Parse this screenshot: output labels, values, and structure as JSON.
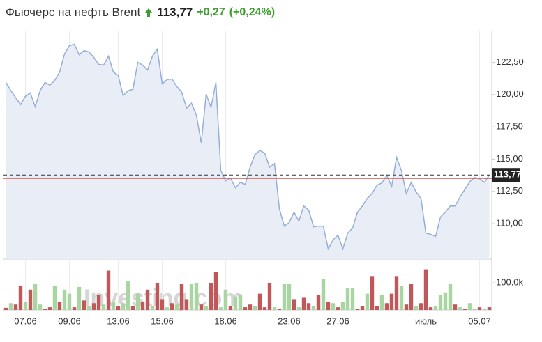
{
  "chart_data": {
    "type": "line",
    "title": "Фьючерс на нефть Brent",
    "current_price": 113.77,
    "current_price_label": "113,77",
    "change": "+0,27",
    "change_pct": "(+0,24%)",
    "watermark": "Investing.com",
    "color": "#94aed6",
    "area_color": "#e9edf6",
    "reference_line": 113.5,
    "reference_color": "#d9534f",
    "categories": [
      null,
      null,
      null,
      null,
      "07.06",
      null,
      null,
      null,
      null,
      null,
      null,
      null,
      null,
      "09.06",
      null,
      null,
      null,
      null,
      null,
      null,
      null,
      null,
      null,
      "13.06",
      null,
      null,
      null,
      null,
      null,
      null,
      null,
      null,
      "15.06",
      null,
      null,
      null,
      null,
      null,
      null,
      null,
      null,
      null,
      null,
      null,
      null,
      "18.06",
      null,
      null,
      null,
      null,
      null,
      null,
      null,
      null,
      null,
      null,
      null,
      null,
      "23.06",
      null,
      null,
      null,
      null,
      null,
      null,
      null,
      null,
      null,
      "27.06",
      null,
      null,
      null,
      null,
      null,
      null,
      null,
      null,
      null,
      null,
      null,
      null,
      null,
      null,
      null,
      null,
      null,
      "июль",
      null,
      null,
      null,
      null,
      null,
      null,
      null,
      null,
      null,
      null,
      "05.07",
      null,
      null
    ],
    "values": [
      120.94,
      120.3,
      119.76,
      119.22,
      119.87,
      120.13,
      119.06,
      120.3,
      120.94,
      120.73,
      121.1,
      121.75,
      123.15,
      123.79,
      123.9,
      123.09,
      123.41,
      123.31,
      122.88,
      122.34,
      122.28,
      122.98,
      121.75,
      121.48,
      119.92,
      120.3,
      120.4,
      122.5,
      122.28,
      121.91,
      122.98,
      123.52,
      120.83,
      121.16,
      121.21,
      120.62,
      120.19,
      118.95,
      119.33,
      118.41,
      116.26,
      120.03,
      119.01,
      120.94,
      114.11,
      113.31,
      113.52,
      112.77,
      113.2,
      113.04,
      114.38,
      115.35,
      115.67,
      115.46,
      114.38,
      114.65,
      111.16,
      109.81,
      110.08,
      110.89,
      110.19,
      111.37,
      111.05,
      109.76,
      109.81,
      109.81,
      108.04,
      108.74,
      109.11,
      108.04,
      109.27,
      109.65,
      110.89,
      111.37,
      111.96,
      112.34,
      112.98,
      113.15,
      113.74,
      112.88,
      115.13,
      114.11,
      112.34,
      113.2,
      112.45,
      111.96,
      109.27,
      109.17,
      109.01,
      110.51,
      110.89,
      111.37,
      111.37,
      112.07,
      112.66,
      113.25,
      113.58,
      113.47,
      113.2,
      113.77
    ],
    "ylim": [
      107.25,
      124.9
    ],
    "yticks": [
      {
        "value": 110,
        "label": "110,00"
      },
      {
        "value": 112.5,
        "label": "112,50"
      },
      {
        "value": 115,
        "label": "115,00"
      },
      {
        "value": 117.5,
        "label": "117,50"
      },
      {
        "value": 120,
        "label": "120,00"
      },
      {
        "value": 122.5,
        "label": "122,50"
      }
    ],
    "grid": true,
    "volume": {
      "values": [
        8000,
        25000,
        20000,
        90000,
        30000,
        75000,
        95000,
        20000,
        5000,
        10000,
        90000,
        30000,
        75000,
        60000,
        10000,
        85000,
        35000,
        15000,
        25000,
        55000,
        20000,
        145000,
        30000,
        15000,
        25000,
        105000,
        15000,
        60000,
        30000,
        75000,
        15000,
        100000,
        40000,
        10000,
        25000,
        20000,
        95000,
        40000,
        95000,
        100000,
        20000,
        15000,
        100000,
        140000,
        10000,
        75000,
        15000,
        50000,
        55000,
        10000,
        20000,
        15000,
        60000,
        10000,
        100000,
        10000,
        5000,
        95000,
        95000,
        40000,
        10000,
        45000,
        25000,
        15000,
        55000,
        115000,
        30000,
        25000,
        10000,
        30000,
        80000,
        80000,
        5000,
        15000,
        60000,
        125000,
        15000,
        55000,
        25000,
        60000,
        125000,
        90000,
        20000,
        95000,
        15000,
        25000,
        150000,
        10000,
        15000,
        55000,
        65000,
        95000,
        20000,
        10000,
        5000,
        25000,
        5000,
        10000,
        5000,
        10000
      ],
      "colors": [
        "#c0585a",
        "#a9d5a2",
        "#c0585a",
        "#c0585a",
        "#a9d5a2",
        "#c0585a",
        "#a9d5a2",
        "#a9d5a2",
        "#c0585a",
        "#c0585a",
        "#a9d5a2",
        "#c0585a",
        "#a9d5a2",
        "#a9d5a2",
        "#c0585a",
        "#a9d5a2",
        "#c0585a",
        "#a9d5a2",
        "#c0585a",
        "#c0585a",
        "#a9d5a2",
        "#c0585a",
        "#a9d5a2",
        "#c0585a",
        "#a9d5a2",
        "#a9d5a2",
        "#c0585a",
        "#a9d5a2",
        "#c0585a",
        "#c0585a",
        "#a9d5a2",
        "#c0585a",
        "#c0585a",
        "#a9d5a2",
        "#c0585a",
        "#a9d5a2",
        "#c0585a",
        "#c0585a",
        "#a9d5a2",
        "#a9d5a2",
        "#c0585a",
        "#a9d5a2",
        "#c0585a",
        "#c0585a",
        "#a9d5a2",
        "#a9d5a2",
        "#c0585a",
        "#a9d5a2",
        "#a9d5a2",
        "#c0585a",
        "#c0585a",
        "#a9d5a2",
        "#c0585a",
        "#c0585a",
        "#c0585a",
        "#a9d5a2",
        "#c0585a",
        "#a9d5a2",
        "#a9d5a2",
        "#c0585a",
        "#a9d5a2",
        "#c0585a",
        "#c0585a",
        "#a9d5a2",
        "#c0585a",
        "#a9d5a2",
        "#c0585a",
        "#a9d5a2",
        "#c0585a",
        "#a9d5a2",
        "#a9d5a2",
        "#a9d5a2",
        "#c0585a",
        "#c0585a",
        "#a9d5a2",
        "#c0585a",
        "#c0585a",
        "#a9d5a2",
        "#c0585a",
        "#c0585a",
        "#c0585a",
        "#a9d5a2",
        "#c0585a",
        "#c0585a",
        "#a9d5a2",
        "#c0585a",
        "#c0585a",
        "#c0585a",
        "#a9d5a2",
        "#a9d5a2",
        "#a9d5a2",
        "#a9d5a2",
        "#c0585a",
        "#a9d5a2",
        "#c0585a",
        "#a9d5a2",
        "#a9d5a2",
        "#c0585a",
        "#a9d5a2",
        "#c0585a"
      ],
      "ylim": [
        0,
        172000
      ],
      "yticks": [
        {
          "value": 100000,
          "label": "100.0k"
        }
      ]
    }
  }
}
